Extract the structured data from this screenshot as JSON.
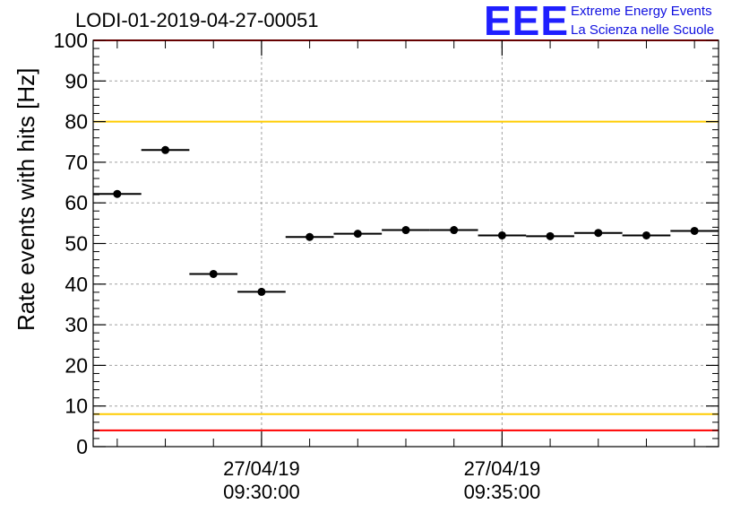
{
  "header": {
    "title": "LODI-01-2019-04-27-00051",
    "logo_text": "EEE",
    "logo_line1": "Extreme Energy Events",
    "logo_line2": "La Scienza nelle Scuole"
  },
  "colors": {
    "logo": "#1f1fff",
    "red_limit": "#ff0000",
    "yellow_limit": "#ffcc00",
    "marker": "#000000",
    "grid": "#a0a0a0"
  },
  "chart_data": {
    "type": "scatter",
    "title": "LODI-01-2019-04-27-00051",
    "ylabel": "Rate events with hits [Hz]",
    "xlabel": "",
    "ylim": [
      0,
      100
    ],
    "yticks": [
      0,
      10,
      20,
      30,
      40,
      50,
      60,
      70,
      80,
      90,
      100
    ],
    "xlim": [
      "27/04/19 09:26:30",
      "27/04/19 09:39:30"
    ],
    "xticks": [
      {
        "date": "27/04/19",
        "time": "09:30:00"
      },
      {
        "date": "27/04/19",
        "time": "09:35:00"
      }
    ],
    "grid": true,
    "series": [
      {
        "points": [
          {
            "x_start": "09:26:30",
            "x_end": "09:27:30",
            "y": 62.2
          },
          {
            "x_start": "09:27:30",
            "x_end": "09:28:30",
            "y": 73.0
          },
          {
            "x_start": "09:28:30",
            "x_end": "09:29:30",
            "y": 42.5
          },
          {
            "x_start": "09:29:30",
            "x_end": "09:30:30",
            "y": 38.1
          },
          {
            "x_start": "09:30:30",
            "x_end": "09:31:30",
            "y": 51.6
          },
          {
            "x_start": "09:31:30",
            "x_end": "09:32:30",
            "y": 52.4
          },
          {
            "x_start": "09:32:30",
            "x_end": "09:33:30",
            "y": 53.3
          },
          {
            "x_start": "09:33:30",
            "x_end": "09:34:30",
            "y": 53.3
          },
          {
            "x_start": "09:34:30",
            "x_end": "09:35:30",
            "y": 52.0
          },
          {
            "x_start": "09:35:30",
            "x_end": "09:36:30",
            "y": 51.8
          },
          {
            "x_start": "09:36:30",
            "x_end": "09:37:30",
            "y": 52.6
          },
          {
            "x_start": "09:37:30",
            "x_end": "09:38:30",
            "y": 52.0
          },
          {
            "x_start": "09:38:30",
            "x_end": "09:39:30",
            "y": 53.1
          }
        ]
      }
    ],
    "reference_lines": [
      {
        "y": 100,
        "color": "#ff0000"
      },
      {
        "y": 80,
        "color": "#ffcc00"
      },
      {
        "y": 8,
        "color": "#ffcc00"
      },
      {
        "y": 4,
        "color": "#ff0000"
      }
    ]
  }
}
